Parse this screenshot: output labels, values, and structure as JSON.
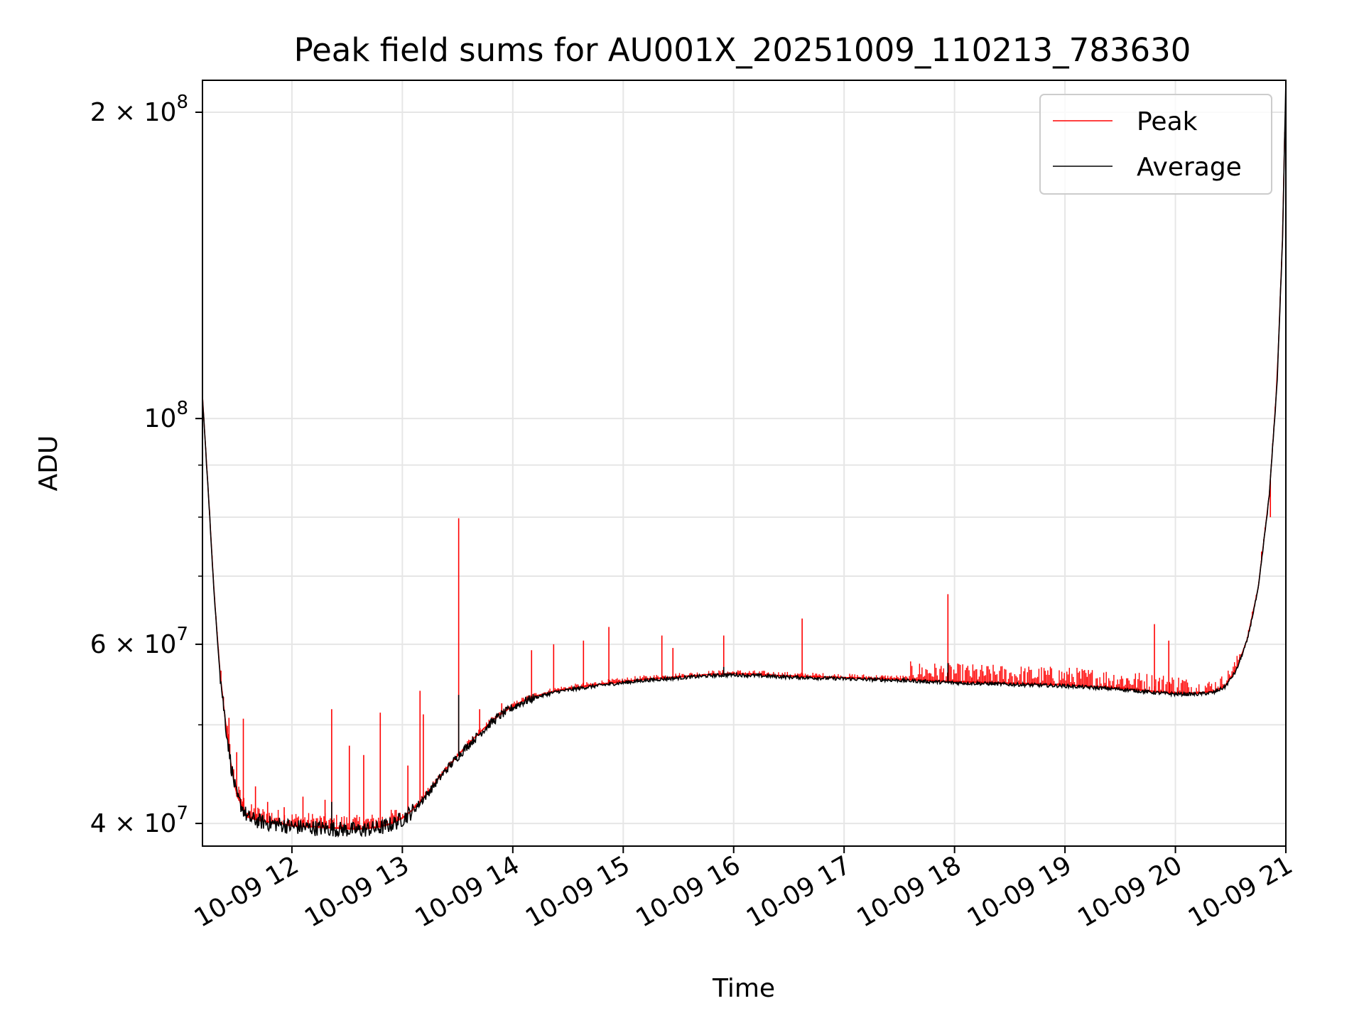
{
  "chart_data": {
    "type": "line",
    "title": "Peak field sums for AU001X_20251009_110213_783630",
    "xlabel": "Time",
    "ylabel": "ADU",
    "yscale": "log",
    "xlim": [
      11.19,
      21.0
    ],
    "ylim": [
      38000000,
      215000000
    ],
    "grid": true,
    "legend_position": "top-right",
    "x_ticks": [
      {
        "value": 12,
        "label": "10-09 12"
      },
      {
        "value": 13,
        "label": "10-09 13"
      },
      {
        "value": 14,
        "label": "10-09 14"
      },
      {
        "value": 15,
        "label": "10-09 15"
      },
      {
        "value": 16,
        "label": "10-09 16"
      },
      {
        "value": 17,
        "label": "10-09 17"
      },
      {
        "value": 18,
        "label": "10-09 18"
      },
      {
        "value": 19,
        "label": "10-09 19"
      },
      {
        "value": 20,
        "label": "10-09 20"
      },
      {
        "value": 21,
        "label": "10-09 21"
      }
    ],
    "y_ticks_major": [
      {
        "value": 40000000,
        "mantissa": "4",
        "exponent": "7"
      },
      {
        "value": 60000000,
        "mantissa": "6",
        "exponent": "7"
      },
      {
        "value": 100000000,
        "mantissa": "10",
        "exponent": "8"
      },
      {
        "value": 200000000,
        "mantissa": "2",
        "exponent": "8"
      }
    ],
    "y_ticks_minor": [
      50000000,
      70000000,
      80000000,
      90000000
    ],
    "times_sign": "×",
    "series": [
      {
        "name": "Average",
        "color": "#000000",
        "x": [
          11.19,
          11.25,
          11.3,
          11.35,
          11.4,
          11.45,
          11.5,
          11.6,
          11.7,
          11.8,
          11.9,
          12.0,
          12.2,
          12.4,
          12.6,
          12.8,
          12.9,
          13.0,
          13.1,
          13.2,
          13.3,
          13.4,
          13.5,
          13.6,
          13.7,
          13.8,
          13.9,
          14.0,
          14.1,
          14.2,
          14.4,
          14.6,
          14.8,
          15.0,
          15.2,
          15.4,
          15.6,
          15.8,
          16.0,
          16.2,
          16.5,
          17.0,
          17.5,
          18.0,
          18.5,
          19.0,
          19.5,
          19.8,
          20.0,
          20.2,
          20.35,
          20.45,
          20.55,
          20.65,
          20.75,
          20.85,
          20.92,
          20.97,
          21.0
        ],
        "values": [
          105000000,
          82000000,
          66000000,
          56000000,
          50000000,
          45500000,
          42500000,
          40500000,
          40200000,
          40000000,
          39900000,
          39700000,
          39600000,
          39500000,
          39400000,
          39600000,
          39900000,
          40400000,
          41200000,
          42400000,
          43800000,
          45200000,
          46500000,
          47800000,
          49000000,
          50200000,
          51200000,
          52000000,
          52700000,
          53200000,
          53900000,
          54300000,
          54700000,
          55000000,
          55300000,
          55500000,
          55700000,
          55900000,
          56000000,
          55900000,
          55700000,
          55500000,
          55300000,
          55000000,
          54800000,
          54600000,
          54200000,
          53800000,
          53600000,
          53600000,
          53800000,
          54500000,
          56500000,
          60500000,
          68000000,
          84000000,
          108000000,
          150000000,
          215000000
        ]
      },
      {
        "name": "Peak",
        "color": "#ff0000",
        "spikes": [
          {
            "x": 11.43,
            "value": 50800000
          },
          {
            "x": 11.5,
            "value": 47000000
          },
          {
            "x": 11.56,
            "value": 50700000
          },
          {
            "x": 11.67,
            "value": 43500000
          },
          {
            "x": 11.78,
            "value": 42000000
          },
          {
            "x": 11.93,
            "value": 41500000
          },
          {
            "x": 12.1,
            "value": 42500000
          },
          {
            "x": 12.3,
            "value": 42200000
          },
          {
            "x": 12.36,
            "value": 51800000
          },
          {
            "x": 12.52,
            "value": 47700000
          },
          {
            "x": 12.65,
            "value": 46700000
          },
          {
            "x": 12.8,
            "value": 51400000
          },
          {
            "x": 13.05,
            "value": 45600000
          },
          {
            "x": 13.16,
            "value": 54000000
          },
          {
            "x": 13.19,
            "value": 51200000
          },
          {
            "x": 13.51,
            "value": 79800000
          },
          {
            "x": 13.7,
            "value": 51800000
          },
          {
            "x": 13.9,
            "value": 52500000
          },
          {
            "x": 14.17,
            "value": 59200000
          },
          {
            "x": 14.37,
            "value": 60000000
          },
          {
            "x": 14.64,
            "value": 60500000
          },
          {
            "x": 14.87,
            "value": 62400000
          },
          {
            "x": 15.35,
            "value": 61200000
          },
          {
            "x": 15.45,
            "value": 59500000
          },
          {
            "x": 15.91,
            "value": 61200000
          },
          {
            "x": 16.62,
            "value": 63600000
          },
          {
            "x": 17.94,
            "value": 67200000
          },
          {
            "x": 19.81,
            "value": 62800000
          },
          {
            "x": 19.94,
            "value": 60500000
          },
          {
            "x": 20.78,
            "value": 74000000
          },
          {
            "x": 20.86,
            "value": 80000000
          }
        ]
      }
    ]
  }
}
